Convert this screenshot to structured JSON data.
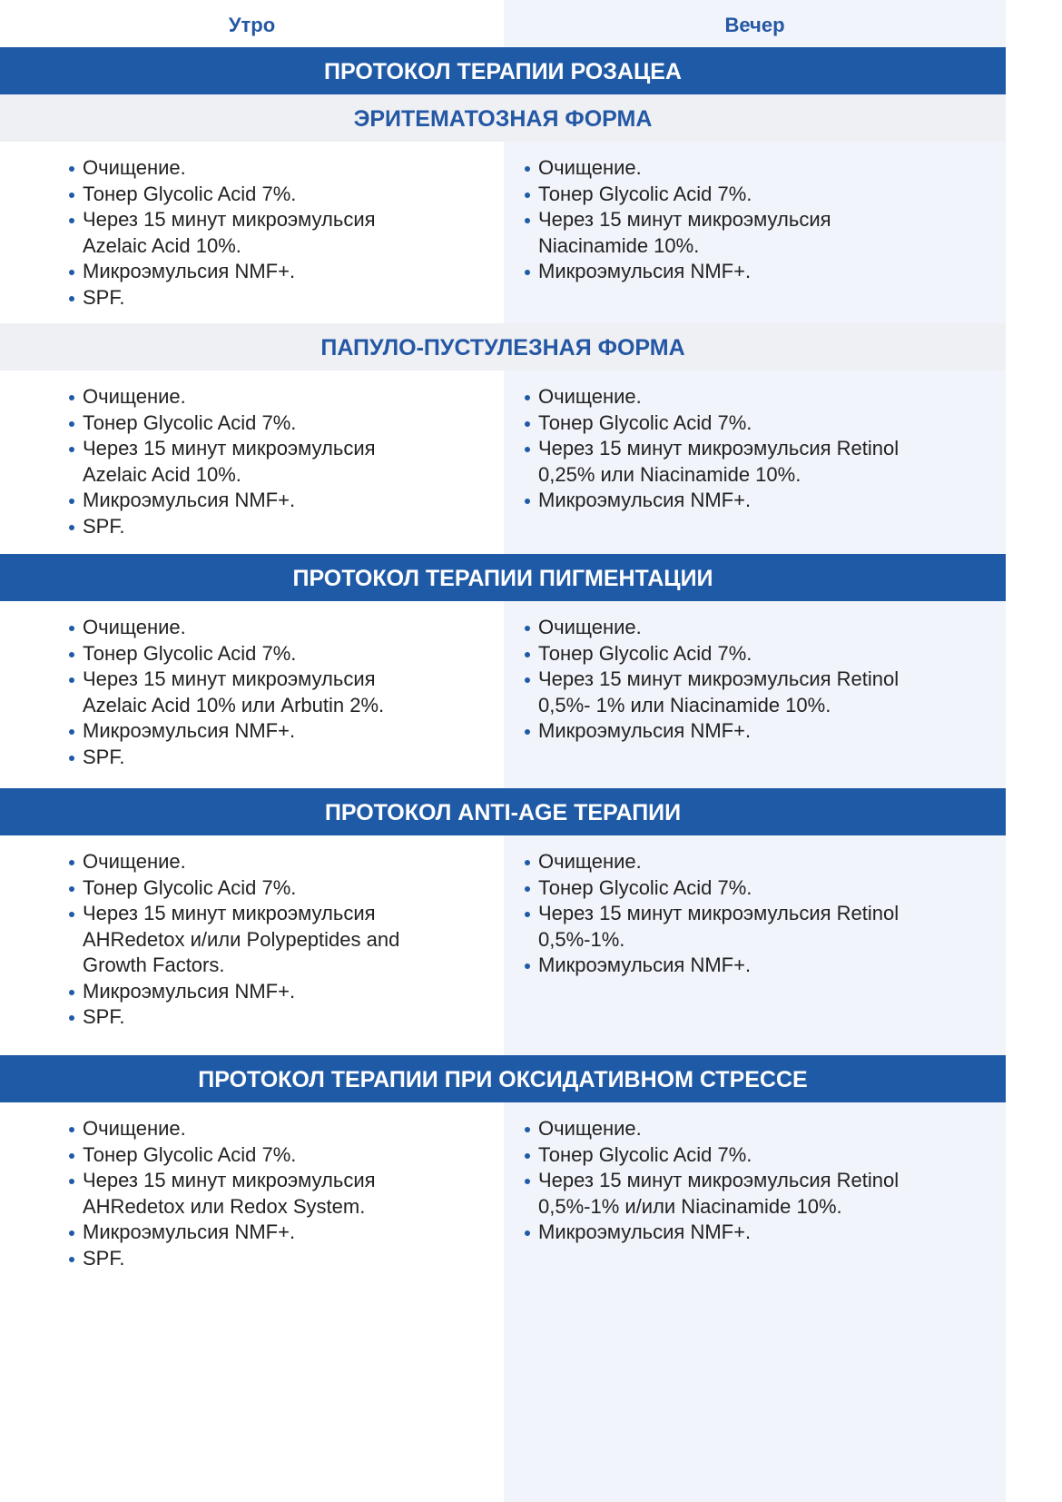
{
  "columns": {
    "morning": "Утро",
    "evening": "Вечер"
  },
  "colors": {
    "accent": "#1f5aa6",
    "heading_text": "#2457a4",
    "evening_bg": "#f1f4fa"
  },
  "blocks": [
    {
      "type": "bar",
      "title": "ПРОТОКОЛ ТЕРАПИИ РОЗАЦЕА"
    },
    {
      "type": "sub",
      "title": "ЭРИТЕМАТОЗНАЯ ФОРМА"
    },
    {
      "type": "content",
      "morning": [
        "Очищение.",
        "Тонер Glycolic Acid 7%.",
        "Через 15 минут микроэмульсия Azelaic Acid 10%.",
        "Микроэмульсия NMF+.",
        "SPF."
      ],
      "evening": [
        "Очищение.",
        "Тонер Glycolic Acid 7%.",
        "Через 15 минут микроэмульсия Niacinamide 10%.",
        "Микроэмульсия NMF+."
      ]
    },
    {
      "type": "sub",
      "title": "ПАПУЛО-ПУСТУЛЕЗНАЯ ФОРМА"
    },
    {
      "type": "content",
      "morning": [
        "Очищение.",
        "Тонер Glycolic Acid 7%.",
        "Через 15 минут микроэмульсия Azelaic Acid 10%.",
        "Микроэмульсия NMF+.",
        "SPF."
      ],
      "evening": [
        "Очищение.",
        "Тонер Glycolic Acid 7%.",
        "Через 15 минут микроэмульсия Retinol 0,25% или Niacinamide 10%.",
        "Микроэмульсия NMF+."
      ]
    },
    {
      "type": "bar",
      "title": "ПРОТОКОЛ ТЕРАПИИ ПИГМЕНТАЦИИ"
    },
    {
      "type": "content",
      "morning": [
        "Очищение.",
        "Тонер Glycolic Acid 7%.",
        "Через 15 минут микроэмульсия Azelaic Acid 10% или Arbutin 2%.",
        "Микроэмульсия NMF+.",
        "SPF."
      ],
      "evening": [
        "Очищение.",
        "Тонер Glycolic Acid 7%.",
        "Через 15 минут микроэмульсия Retinol 0,5%- 1% или Niacinamide 10%.",
        "Микроэмульсия NMF+."
      ]
    },
    {
      "type": "bar",
      "title": "ПРОТОКОЛ ANTI-AGE ТЕРАПИИ"
    },
    {
      "type": "content",
      "morning": [
        "Очищение.",
        "Тонер Glycolic Acid 7%.",
        "Через 15 минут микроэмульсия AHRedetox и/или Polypeptides and Growth Factors.",
        "Микроэмульсия NMF+.",
        "SPF."
      ],
      "evening": [
        "Очищение.",
        "Тонер Glycolic Acid 7%.",
        "Через 15 минут микроэмульсия Retinol 0,5%-1%.",
        "Микроэмульсия NMF+."
      ]
    },
    {
      "type": "bar",
      "title": "ПРОТОКОЛ ТЕРАПИИ ПРИ ОКСИДАТИВНОМ СТРЕССЕ"
    },
    {
      "type": "content",
      "morning": [
        "Очищение.",
        "Тонер Glycolic Acid 7%.",
        "Через 15 минут микроэмульсия AHRedetox или Redox System.",
        "Микроэмульсия NMF+.",
        "SPF."
      ],
      "evening": [
        "Очищение.",
        "Тонер Glycolic Acid 7%.",
        "Через 15 минут микроэмульсия Retinol 0,5%-1% и/или Niacinamide 10%.",
        "Микроэмульсия NMF+."
      ]
    }
  ]
}
